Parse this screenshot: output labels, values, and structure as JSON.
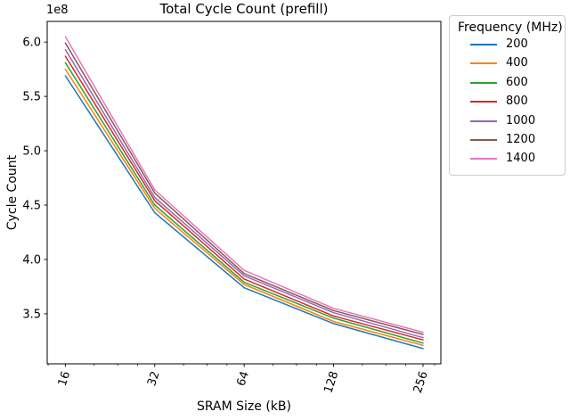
{
  "figure": {
    "title": "Total Cycle Count (prefill)",
    "y_offset_text": "1e8",
    "xlabel": "SRAM Size (kB)",
    "ylabel": "Cycle Count"
  },
  "legend": {
    "title": "Frequency (MHz)",
    "entries": [
      {
        "label": "200",
        "color": "#1f77b4"
      },
      {
        "label": "400",
        "color": "#ff7f0e"
      },
      {
        "label": "600",
        "color": "#2ca02c"
      },
      {
        "label": "800",
        "color": "#d62728"
      },
      {
        "label": "1000",
        "color": "#9467bd"
      },
      {
        "label": "1200",
        "color": "#8c564b"
      },
      {
        "label": "1400",
        "color": "#e377c2"
      }
    ]
  },
  "chart_data": {
    "type": "line",
    "title": "Total Cycle Count (prefill)",
    "xlabel": "SRAM Size (kB)",
    "ylabel": "Cycle Count",
    "y_scale_factor": "1e8",
    "x_axis_scale": "log2",
    "x": [
      16,
      32,
      64,
      128,
      256
    ],
    "x_tick_labels": [
      "16",
      "32",
      "64",
      "128",
      "256"
    ],
    "x_minor_ticks": [
      14,
      20,
      24,
      28,
      40,
      48,
      56,
      80,
      96,
      112,
      160,
      192,
      224,
      280
    ],
    "xlim": [
      13.9,
      294
    ],
    "y_ticks_1e8": [
      3.5,
      4.0,
      4.5,
      5.0,
      5.5,
      6.0
    ],
    "y_tick_labels": [
      "3.5",
      "4.0",
      "4.5",
      "5.0",
      "5.5",
      "6.0"
    ],
    "ylim_1e8": [
      3.04,
      6.19
    ],
    "grid": false,
    "legend_title": "Frequency (MHz)",
    "legend_position": "outside-top-right",
    "series": [
      {
        "name": "200",
        "color": "#1f77b4",
        "values_1e8": [
          5.69,
          4.43,
          3.74,
          3.41,
          3.18
        ]
      },
      {
        "name": "400",
        "color": "#ff7f0e",
        "values_1e8": [
          5.75,
          4.47,
          3.77,
          3.43,
          3.21
        ]
      },
      {
        "name": "600",
        "color": "#2ca02c",
        "values_1e8": [
          5.81,
          4.5,
          3.79,
          3.46,
          3.23
        ]
      },
      {
        "name": "800",
        "color": "#d62728",
        "values_1e8": [
          5.87,
          4.54,
          3.82,
          3.48,
          3.26
        ]
      },
      {
        "name": "1000",
        "color": "#9467bd",
        "values_1e8": [
          5.93,
          4.57,
          3.85,
          3.51,
          3.28
        ]
      },
      {
        "name": "1200",
        "color": "#8c564b",
        "values_1e8": [
          5.99,
          4.61,
          3.87,
          3.53,
          3.31
        ]
      },
      {
        "name": "1400",
        "color": "#e377c2",
        "values_1e8": [
          6.05,
          4.64,
          3.9,
          3.55,
          3.33
        ]
      }
    ]
  }
}
